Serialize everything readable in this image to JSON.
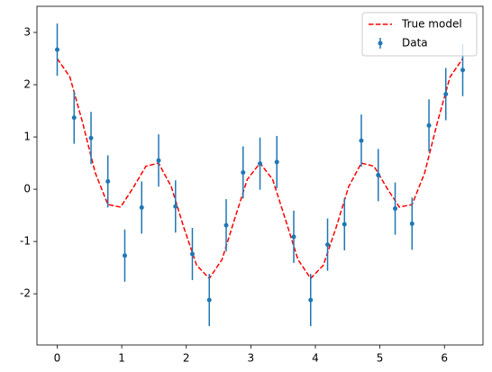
{
  "chart_data": {
    "type": "line",
    "xlim": [
      -0.314,
      6.597
    ],
    "ylim": [
      -2.98,
      3.5
    ],
    "xticks": [
      0,
      1,
      2,
      3,
      4,
      5,
      6
    ],
    "yticks": [
      -2,
      -1,
      0,
      1,
      2,
      3
    ],
    "legend": "upper right",
    "series": [
      {
        "name": "True model",
        "type": "line",
        "color": "#ff0000",
        "dash": "dashed",
        "x": [
          0,
          0.196,
          0.393,
          0.589,
          0.785,
          0.982,
          1.178,
          1.374,
          1.571,
          1.767,
          1.963,
          2.16,
          2.356,
          2.553,
          2.749,
          2.945,
          3.142,
          3.338,
          3.534,
          3.731,
          3.927,
          4.123,
          4.32,
          4.516,
          4.712,
          4.909,
          5.105,
          5.301,
          5.498,
          5.694,
          5.89,
          6.087,
          6.283
        ],
        "values": [
          2.5,
          2.15,
          1.277,
          0.315,
          -0.293,
          -0.342,
          0.029,
          0.44,
          0.5,
          0.05,
          -0.737,
          -1.454,
          -1.707,
          -1.347,
          -0.57,
          0.188,
          0.5,
          0.188,
          -0.57,
          -1.347,
          -1.707,
          -1.454,
          -0.737,
          0.05,
          0.5,
          0.44,
          0.029,
          -0.342,
          -0.293,
          0.315,
          1.277,
          2.15,
          2.5
        ]
      },
      {
        "name": "Data",
        "type": "errorbar",
        "color": "#1f77b4",
        "x": [
          0,
          0.262,
          0.524,
          0.785,
          1.047,
          1.309,
          1.571,
          1.833,
          2.094,
          2.356,
          2.618,
          2.88,
          3.142,
          3.403,
          3.665,
          3.927,
          4.189,
          4.451,
          4.712,
          4.974,
          5.236,
          5.498,
          5.76,
          6.021,
          6.283
        ],
        "values": [
          2.67,
          1.37,
          0.98,
          0.15,
          -1.27,
          -0.35,
          0.55,
          -0.33,
          -1.24,
          -2.12,
          -0.69,
          0.32,
          0.49,
          0.52,
          -0.91,
          -2.12,
          -1.06,
          -0.67,
          0.93,
          0.27,
          -0.37,
          -0.66,
          1.22,
          1.82,
          2.28
        ],
        "errors": [
          0.5,
          0.5,
          0.5,
          0.5,
          0.5,
          0.5,
          0.5,
          0.5,
          0.5,
          0.5,
          0.5,
          0.5,
          0.5,
          0.5,
          0.5,
          0.5,
          0.5,
          0.5,
          0.5,
          0.5,
          0.5,
          0.5,
          0.5,
          0.5,
          0.5
        ]
      }
    ]
  }
}
